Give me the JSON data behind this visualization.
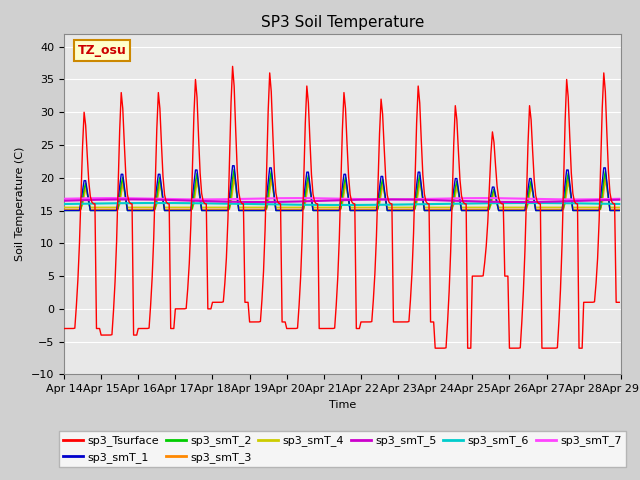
{
  "title": "SP3 Soil Temperature",
  "ylabel": "Soil Temperature (C)",
  "xlabel": "Time",
  "ylim": [
    -10,
    42
  ],
  "yticks": [
    -10,
    -5,
    0,
    5,
    10,
    15,
    20,
    25,
    30,
    35,
    40
  ],
  "xtick_labels": [
    "Apr 14",
    "Apr 15",
    "Apr 16",
    "Apr 17",
    "Apr 18",
    "Apr 19",
    "Apr 20",
    "Apr 21",
    "Apr 22",
    "Apr 23",
    "Apr 24",
    "Apr 25",
    "Apr 26",
    "Apr 27",
    "Apr 28",
    "Apr 29"
  ],
  "bg_color": "#e8e8e8",
  "grid_color": "white",
  "annotation_text": "TZ_osu",
  "annotation_bg": "#ffffcc",
  "annotation_border": "#cc8800",
  "series_colors": {
    "sp3_Tsurface": "#ff0000",
    "sp3_smT_1": "#0000cc",
    "sp3_smT_2": "#00cc00",
    "sp3_smT_3": "#ff8800",
    "sp3_smT_4": "#cccc00",
    "sp3_smT_5": "#cc00cc",
    "sp3_smT_6": "#00cccc",
    "sp3_smT_7": "#ff44ff"
  },
  "surface_peaks": [
    30,
    33,
    33,
    35,
    37,
    36,
    34,
    33,
    32,
    34,
    31,
    27,
    31,
    35,
    36
  ],
  "surface_troughs": [
    -3,
    -4,
    -3,
    0,
    1,
    -2,
    -3,
    -3,
    -2,
    -2,
    -6,
    5,
    -6,
    -6,
    1
  ],
  "soil_base": 16.0
}
